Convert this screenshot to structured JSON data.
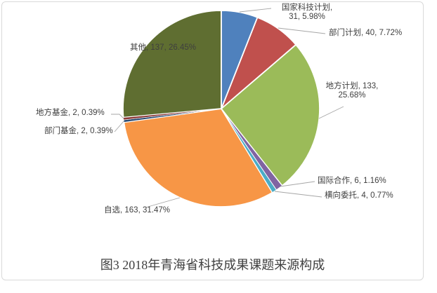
{
  "frame": {
    "border_color": "#D9D9D9",
    "background": "#FFFFFF"
  },
  "chart_data": {
    "type": "pie",
    "title": "图3 2018年青海省科技成果课题来源构成",
    "direction": "clockwise",
    "start_angle_deg": 0,
    "total": 518,
    "label_color": "#3F3F3F",
    "leader_line_color": "#A6A6A6",
    "legend_position": "none",
    "slices": [
      {
        "label": "国家科技计划",
        "value": 31,
        "percent": 5.98,
        "color": "#4F81BD",
        "label_lines": [
          "国家科技计划,",
          "31, 5.98%"
        ],
        "label_inside": false
      },
      {
        "label": "部门计划",
        "value": 40,
        "percent": 7.72,
        "color": "#C0504D",
        "label_lines": [
          "部门计划, 40, 7.72%"
        ],
        "label_inside": false
      },
      {
        "label": "地方计划",
        "value": 133,
        "percent": 25.68,
        "color": "#9BBB59",
        "label_lines": [
          "地方计划, 133,",
          "25.68%"
        ],
        "label_inside": false
      },
      {
        "label": "国际合作",
        "value": 6,
        "percent": 1.16,
        "color": "#8064A2",
        "label_lines": [
          "国际合作, 6, 1.16%"
        ],
        "label_inside": false
      },
      {
        "label": "横向委托",
        "value": 4,
        "percent": 0.77,
        "color": "#4BACC6",
        "label_lines": [
          "横向委托, 4, 0.77%"
        ],
        "label_inside": false
      },
      {
        "label": "自选",
        "value": 163,
        "percent": 31.47,
        "color": "#F79646",
        "label_lines": [
          "自选, 163, 31.47%"
        ],
        "label_inside": false
      },
      {
        "label": "部门基金",
        "value": 2,
        "percent": 0.39,
        "color": "#2C4D75",
        "label_lines": [
          "部门基金, 2, 0.39%"
        ],
        "label_inside": false
      },
      {
        "label": "地方基金",
        "value": 2,
        "percent": 0.39,
        "color": "#8C3836",
        "label_lines": [
          "地方基金, 2, 0.39%"
        ],
        "label_inside": false
      },
      {
        "label": "其他",
        "value": 137,
        "percent": 26.45,
        "color": "#5F6E31",
        "label_lines": [
          "其他, 137, 26.45%"
        ],
        "label_inside": true
      }
    ]
  }
}
